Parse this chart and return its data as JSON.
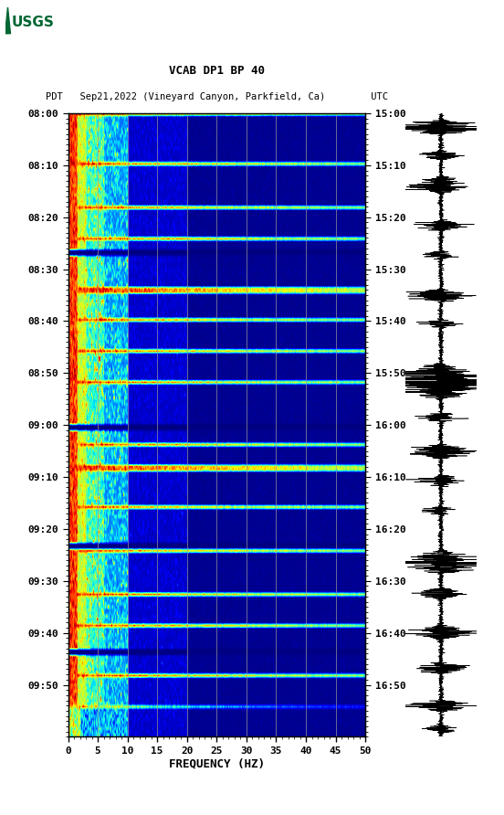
{
  "title_line1": "VCAB DP1 BP 40",
  "title_line2": "PDT   Sep21,2022 (Vineyard Canyon, Parkfield, Ca)        UTC",
  "left_yticks_labels": [
    "08:00",
    "08:10",
    "08:20",
    "08:30",
    "08:40",
    "08:50",
    "09:00",
    "09:10",
    "09:20",
    "09:30",
    "09:40",
    "09:50"
  ],
  "right_yticks_labels": [
    "15:00",
    "15:10",
    "15:20",
    "15:30",
    "15:40",
    "15:50",
    "16:00",
    "16:10",
    "16:20",
    "16:30",
    "16:40",
    "16:50"
  ],
  "xticks": [
    0,
    5,
    10,
    15,
    20,
    25,
    30,
    35,
    40,
    45,
    50
  ],
  "xlabel": "FREQUENCY (HZ)",
  "freq_min": 0,
  "freq_max": 50,
  "colormap": "jet",
  "vline_positions": [
    5,
    10,
    15,
    20,
    25,
    30,
    35,
    40,
    45
  ],
  "usgs_green": "#006633",
  "fig_width": 5.52,
  "fig_height": 8.92,
  "bg_color": "#ffffff"
}
